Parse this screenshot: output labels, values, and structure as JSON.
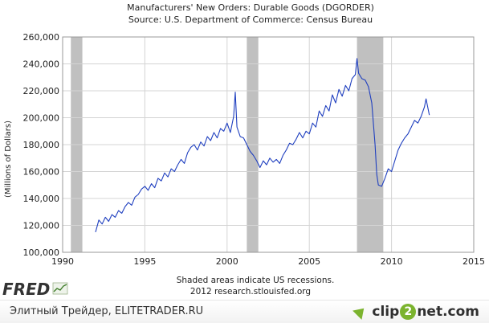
{
  "chart_data": {
    "type": "line",
    "title": "Manufacturers' New Orders: Durable Goods (DGORDER)",
    "subtitle": "Source: U.S. Department of Commerce: Census Bureau",
    "ylabel": "(Millions of Dollars)",
    "xlim": [
      1990,
      2015
    ],
    "ylim": [
      100000,
      260000
    ],
    "x_ticks": [
      "1990",
      "1995",
      "2000",
      "2005",
      "2010",
      "2015"
    ],
    "y_ticks": [
      "100,000",
      "120,000",
      "140,000",
      "160,000",
      "180,000",
      "200,000",
      "220,000",
      "240,000",
      "260,000"
    ],
    "recessions": [
      [
        1990.5,
        1991.2
      ],
      [
        2001.2,
        2001.9
      ],
      [
        2007.9,
        2009.5
      ]
    ],
    "recession_color": "#c0c0c0",
    "line_color": "#1f3fbf",
    "note_line1": "Shaded areas indicate US recessions.",
    "note_line2": "2012 research.stlouisfed.org",
    "series": [
      {
        "x": [
          1992.0,
          1992.2,
          1992.4,
          1992.6,
          1992.8,
          1993.0,
          1993.2,
          1993.4,
          1993.6,
          1993.8,
          1994.0,
          1994.2,
          1994.4,
          1994.6,
          1994.8,
          1995.0,
          1995.2,
          1995.4,
          1995.6,
          1995.8,
          1996.0,
          1996.2,
          1996.4,
          1996.6,
          1996.8,
          1997.0,
          1997.2,
          1997.4,
          1997.6,
          1997.8,
          1998.0,
          1998.2,
          1998.4,
          1998.6,
          1998.8,
          1999.0,
          1999.2,
          1999.4,
          1999.6,
          1999.8,
          2000.0,
          2000.2,
          2000.4,
          2000.5,
          2000.6,
          2000.8,
          2001.0,
          2001.2,
          2001.4,
          2001.6,
          2001.8,
          2002.0,
          2002.2,
          2002.4,
          2002.6,
          2002.8,
          2003.0,
          2003.2,
          2003.4,
          2003.6,
          2003.8,
          2004.0,
          2004.2,
          2004.4,
          2004.6,
          2004.8,
          2005.0,
          2005.2,
          2005.4,
          2005.6,
          2005.8,
          2006.0,
          2006.2,
          2006.4,
          2006.6,
          2006.8,
          2007.0,
          2007.2,
          2007.4,
          2007.6,
          2007.8,
          2007.9,
          2008.0,
          2008.2,
          2008.4,
          2008.6,
          2008.8,
          2009.0,
          2009.1,
          2009.2,
          2009.4,
          2009.6,
          2009.8,
          2010.0,
          2010.2,
          2010.4,
          2010.6,
          2010.8,
          2011.0,
          2011.2,
          2011.4,
          2011.6,
          2011.8,
          2012.0,
          2012.1,
          2012.3
        ],
        "y": [
          115000,
          124000,
          121000,
          126000,
          123000,
          128000,
          126000,
          131000,
          129000,
          134000,
          137000,
          135000,
          141000,
          143000,
          147000,
          149000,
          146000,
          151000,
          148000,
          155000,
          153000,
          159000,
          156000,
          162000,
          160000,
          165000,
          169000,
          166000,
          174000,
          178000,
          180000,
          176000,
          182000,
          179000,
          186000,
          183000,
          189000,
          185000,
          192000,
          190000,
          196000,
          189000,
          201000,
          219000,
          193000,
          186000,
          185000,
          180000,
          175000,
          172000,
          168000,
          163000,
          168000,
          165000,
          170000,
          167000,
          169000,
          166000,
          172000,
          176000,
          181000,
          180000,
          184000,
          189000,
          185000,
          190000,
          188000,
          196000,
          193000,
          205000,
          201000,
          209000,
          205000,
          217000,
          211000,
          221000,
          216000,
          224000,
          220000,
          229000,
          232000,
          244000,
          233000,
          229000,
          228000,
          223000,
          211000,
          180000,
          158000,
          150000,
          149000,
          155000,
          162000,
          160000,
          168000,
          176000,
          181000,
          185000,
          188000,
          193000,
          198000,
          196000,
          201000,
          208000,
          214000,
          202000
        ]
      }
    ]
  },
  "branding": {
    "fred_logo": "FRED",
    "footer_text": "Элитный Трейдер, ELITETRADER.RU",
    "clip_logo_prefix": "clip",
    "clip_logo_two": "2",
    "clip_logo_suffix": "net.com"
  }
}
